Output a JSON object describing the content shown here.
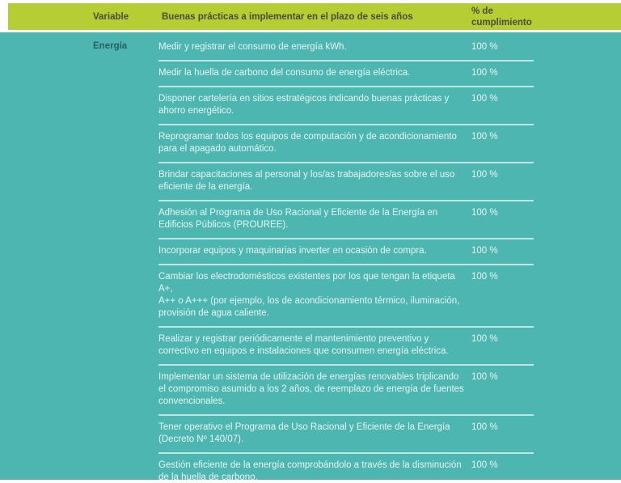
{
  "table": {
    "header": {
      "variable": "Variable",
      "practices": "Buenas prácticas a implementar en el plazo de seis años",
      "compliance": "% de\ncumplimiento"
    },
    "rows": [
      {
        "variable": "Energía",
        "practice": "Medir y registrar el consumo de energía kWh.",
        "compliance": "100 %"
      },
      {
        "variable": "",
        "practice": "Medir la huella de carbono del consumo de energía eléctrica.",
        "compliance": "100 %"
      },
      {
        "variable": "",
        "practice": "Disponer cartelería en sitios estratégicos indicando buenas prácticas y\nahorro energético.",
        "compliance": "100 %"
      },
      {
        "variable": "",
        "practice": "Reprogramar todos los equipos de computación y de acondicionamiento\npara el apagado automático.",
        "compliance": "100 %"
      },
      {
        "variable": "",
        "practice": "Brindar capacitaciones al personal y los/as trabajadores/as sobre el uso\neficiente de la energía.",
        "compliance": "100 %"
      },
      {
        "variable": "",
        "practice": "Adhesión al Programa de Uso Racional y Eficiente de la Energía en\nEdificios Públicos (PROUREE).",
        "compliance": "100 %"
      },
      {
        "variable": "",
        "practice": "Incorporar equipos y maquinarias inverter en ocasión de compra.",
        "compliance": "100 %"
      },
      {
        "variable": "",
        "practice": "Cambiar los electrodomésticos existentes por los que tengan la etiqueta A+,\nA++ o A+++ (por ejemplo, los de acondicionamiento térmico, iluminación,\nprovisión de agua caliente.",
        "compliance": "100 %"
      },
      {
        "variable": "",
        "practice": "Realizar y registrar periódicamente el mantenimiento preventivo y\ncorrectivo en equipos e instalaciones que consumen energía eléctrica.",
        "compliance": "100 %"
      },
      {
        "variable": "",
        "practice": "Implementar un sistema de utilización de energías renovables triplicando\nel compromiso asumido a los 2 años, de reemplazo de energía de fuentes\nconvencionales.",
        "compliance": "100 %"
      },
      {
        "variable": "",
        "practice": "Tener operativo el Programa de Uso Racional y Eficiente de la Energía\n(Decreto Nº 140/07).",
        "compliance": "100 %"
      },
      {
        "variable": "",
        "practice": "Gestión eficiente de la energía comprobándolo a través de la disminución\nde la huella de carbono.",
        "compliance": "100 %"
      }
    ]
  },
  "colors": {
    "header_bg": "#b6cd33",
    "body_bg": "#4db6b1",
    "header_text": "#4b4b41",
    "variable_text": "#2c5f5e",
    "row_text": "#e7f5f3",
    "separator": "rgba(255,255,255,0.65)"
  }
}
